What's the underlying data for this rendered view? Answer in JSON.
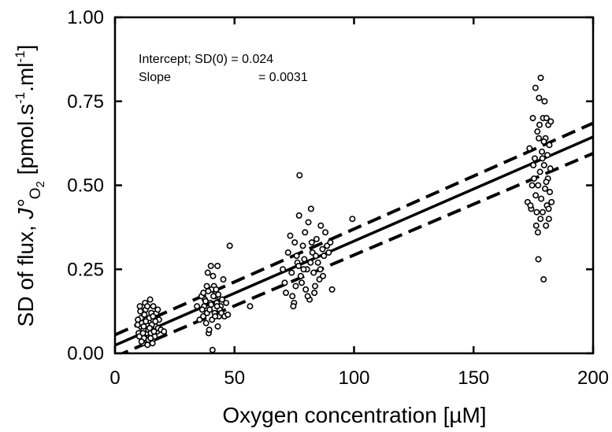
{
  "chart_data": {
    "type": "scatter",
    "xlabel": "Oxygen concentration [µM]",
    "ylabel": {
      "main": "SD of flux, ",
      "symbol": "J°",
      "subscript_O": "O",
      "subscript_2": "2",
      "unit_open": " [pmol.s",
      "unit_exp": "-1",
      "unit_mid": ".ml",
      "unit_exp2": "-1",
      "unit_close": "]"
    },
    "xlim": [
      0,
      200
    ],
    "ylim": [
      0,
      1.0
    ],
    "x_ticks": [
      0,
      50,
      100,
      150,
      200
    ],
    "x_tick_labels": [
      "0",
      "50",
      "100",
      "150",
      "200"
    ],
    "y_ticks": [
      0.0,
      0.25,
      0.5,
      0.75,
      1.0
    ],
    "y_tick_labels": [
      "0.00",
      "0.25",
      "0.50",
      "0.75",
      "1.00"
    ],
    "grid": false,
    "annotations": {
      "intercept_label": "Intercept; SD(0) = 0.024",
      "slope_label": "Slope",
      "slope_value": "= 0.0031"
    },
    "regression": {
      "intercept": 0.024,
      "slope": 0.0031
    },
    "confidence_band": {
      "upper": [
        {
          "x": 0,
          "y": 0.055
        },
        {
          "x": 200,
          "y": 0.685
        }
      ],
      "lower": [
        {
          "x": 0,
          "y": -0.01
        },
        {
          "x": 200,
          "y": 0.595
        }
      ]
    },
    "clusters": [
      {
        "points": [
          [
            11.0,
            0.078
          ],
          [
            14.2,
            0.092
          ],
          [
            12.5,
            0.055
          ],
          [
            16.1,
            0.11
          ],
          [
            10.4,
            0.14
          ],
          [
            13.3,
            0.06
          ],
          [
            15.2,
            0.12
          ],
          [
            9.5,
            0.085
          ],
          [
            17.0,
            0.08
          ],
          [
            12.1,
            0.045
          ],
          [
            18.4,
            0.1
          ],
          [
            14.7,
            0.16
          ],
          [
            11.6,
            0.03
          ],
          [
            13.9,
            0.07
          ],
          [
            16.6,
            0.05
          ],
          [
            10.9,
            0.105
          ],
          [
            15.4,
            0.085
          ],
          [
            12.8,
            0.13
          ],
          [
            14.0,
            0.04
          ],
          [
            17.6,
            0.065
          ],
          [
            9.9,
            0.06
          ],
          [
            13.0,
            0.1
          ],
          [
            16.0,
            0.14
          ],
          [
            11.3,
            0.09
          ],
          [
            15.7,
            0.03
          ],
          [
            12.3,
            0.115
          ],
          [
            18.0,
            0.075
          ],
          [
            10.2,
            0.05
          ],
          [
            14.4,
            0.105
          ],
          [
            13.6,
            0.025
          ],
          [
            16.9,
            0.095
          ],
          [
            11.9,
            0.07
          ],
          [
            15.0,
            0.06
          ],
          [
            12.6,
            0.15
          ],
          [
            17.3,
            0.12
          ],
          [
            10.6,
            0.125
          ],
          [
            14.9,
            0.045
          ],
          [
            13.2,
            0.085
          ],
          [
            19.2,
            0.07
          ],
          [
            11.1,
            0.035
          ],
          [
            15.9,
            0.11
          ],
          [
            12.9,
            0.095
          ],
          [
            14.5,
            0.075
          ],
          [
            9.6,
            0.1
          ],
          [
            16.3,
            0.065
          ],
          [
            17.9,
            0.13
          ],
          [
            13.5,
            0.14
          ],
          [
            11.7,
            0.06
          ],
          [
            20.5,
            0.065
          ],
          [
            12.0,
            0.08
          ]
        ]
      },
      {
        "points": [
          [
            34.3,
            0.14
          ],
          [
            36.2,
            0.17
          ],
          [
            38.5,
            0.12
          ],
          [
            40.1,
            0.26
          ],
          [
            41.4,
            0.2
          ],
          [
            39.2,
            0.06
          ],
          [
            42.6,
            0.15
          ],
          [
            37.0,
            0.18
          ],
          [
            43.5,
            0.11
          ],
          [
            40.8,
            0.01
          ],
          [
            44.2,
            0.14
          ],
          [
            38.1,
            0.09
          ],
          [
            41.0,
            0.23
          ],
          [
            39.6,
            0.13
          ],
          [
            42.1,
            0.17
          ],
          [
            37.6,
            0.16
          ],
          [
            43.0,
            0.08
          ],
          [
            40.4,
            0.19
          ],
          [
            45.3,
            0.22
          ],
          [
            38.8,
            0.24
          ],
          [
            41.7,
            0.12
          ],
          [
            36.9,
            0.11
          ],
          [
            44.8,
            0.16
          ],
          [
            39.9,
            0.15
          ],
          [
            42.9,
            0.26
          ],
          [
            37.3,
            0.14
          ],
          [
            40.6,
            0.1
          ],
          [
            43.8,
            0.13
          ],
          [
            38.4,
            0.2
          ],
          [
            46.5,
            0.15
          ],
          [
            41.2,
            0.17
          ],
          [
            39.4,
            0.07
          ],
          [
            42.3,
            0.19
          ],
          [
            36.5,
            0.13
          ],
          [
            44.5,
            0.12
          ],
          [
            40.2,
            0.145
          ],
          [
            37.9,
            0.155
          ],
          [
            43.2,
            0.175
          ],
          [
            41.9,
            0.11
          ],
          [
            48.0,
            0.32
          ],
          [
            35.4,
            0.1
          ],
          [
            45.8,
            0.11
          ],
          [
            39.0,
            0.185
          ],
          [
            42.7,
            0.14
          ],
          [
            47.2,
            0.115
          ]
        ]
      },
      {
        "points": [
          [
            56.5,
            0.14
          ],
          [
            70.2,
            0.25
          ],
          [
            71.5,
            0.18
          ],
          [
            72.4,
            0.3
          ],
          [
            73.3,
            0.35
          ],
          [
            74.2,
            0.17
          ],
          [
            74.9,
            0.15
          ],
          [
            75.6,
            0.2
          ],
          [
            76.3,
            0.27
          ],
          [
            77.0,
            0.41
          ],
          [
            77.2,
            0.53
          ],
          [
            77.7,
            0.23
          ],
          [
            78.1,
            0.21
          ],
          [
            78.6,
            0.32
          ],
          [
            79.2,
            0.28
          ],
          [
            79.8,
            0.19
          ],
          [
            80.3,
            0.25
          ],
          [
            80.9,
            0.39
          ],
          [
            81.4,
            0.16
          ],
          [
            82.0,
            0.43
          ],
          [
            82.6,
            0.3
          ],
          [
            83.1,
            0.24
          ],
          [
            83.7,
            0.2
          ],
          [
            84.3,
            0.34
          ],
          [
            84.9,
            0.27
          ],
          [
            85.5,
            0.22
          ],
          [
            86.1,
            0.38
          ],
          [
            86.8,
            0.31
          ],
          [
            87.4,
            0.29
          ],
          [
            88.0,
            0.36
          ],
          [
            88.7,
            0.32
          ],
          [
            89.4,
            0.3
          ],
          [
            90.1,
            0.33
          ],
          [
            76.8,
            0.26
          ],
          [
            75.2,
            0.33
          ],
          [
            73.9,
            0.24
          ],
          [
            79.5,
            0.36
          ],
          [
            81.8,
            0.27
          ],
          [
            83.4,
            0.18
          ],
          [
            85.9,
            0.25
          ],
          [
            74.6,
            0.14
          ],
          [
            78.9,
            0.25
          ],
          [
            80.6,
            0.17
          ],
          [
            82.3,
            0.33
          ],
          [
            87.0,
            0.23
          ],
          [
            76.0,
            0.29
          ],
          [
            84.0,
            0.29
          ],
          [
            71.0,
            0.21
          ],
          [
            99.3,
            0.4
          ],
          [
            90.8,
            0.19
          ]
        ]
      },
      {
        "points": [
          [
            172.6,
            0.45
          ],
          [
            173.4,
            0.61
          ],
          [
            174.1,
            0.43
          ],
          [
            174.8,
            0.7
          ],
          [
            175.3,
            0.52
          ],
          [
            175.9,
            0.79
          ],
          [
            176.2,
            0.38
          ],
          [
            176.7,
            0.66
          ],
          [
            177.1,
            0.28
          ],
          [
            177.4,
            0.76
          ],
          [
            177.8,
            0.54
          ],
          [
            178.1,
            0.82
          ],
          [
            178.3,
            0.46
          ],
          [
            178.6,
            0.6
          ],
          [
            178.9,
            0.42
          ],
          [
            179.1,
            0.7
          ],
          [
            179.3,
            0.22
          ],
          [
            179.5,
            0.56
          ],
          [
            179.7,
            0.75
          ],
          [
            179.9,
            0.49
          ],
          [
            180.1,
            0.64
          ],
          [
            180.3,
            0.38
          ],
          [
            180.5,
            0.7
          ],
          [
            180.7,
            0.44
          ],
          [
            180.9,
            0.59
          ],
          [
            181.1,
            0.52
          ],
          [
            181.3,
            0.68
          ],
          [
            181.5,
            0.4
          ],
          [
            181.7,
            0.62
          ],
          [
            181.9,
            0.48
          ],
          [
            182.1,
            0.55
          ],
          [
            182.3,
            0.69
          ],
          [
            182.6,
            0.45
          ],
          [
            176.4,
            0.42
          ],
          [
            175.6,
            0.58
          ],
          [
            174.5,
            0.5
          ],
          [
            173.8,
            0.44
          ],
          [
            177.6,
            0.68
          ],
          [
            176.9,
            0.36
          ],
          [
            178.8,
            0.58
          ],
          [
            177.3,
            0.64
          ],
          [
            176.0,
            0.47
          ],
          [
            175.0,
            0.56
          ],
          [
            180.4,
            0.51
          ],
          [
            181.4,
            0.43
          ],
          [
            179.4,
            0.63
          ],
          [
            178.0,
            0.4
          ],
          [
            177.0,
            0.5
          ]
        ]
      }
    ]
  }
}
